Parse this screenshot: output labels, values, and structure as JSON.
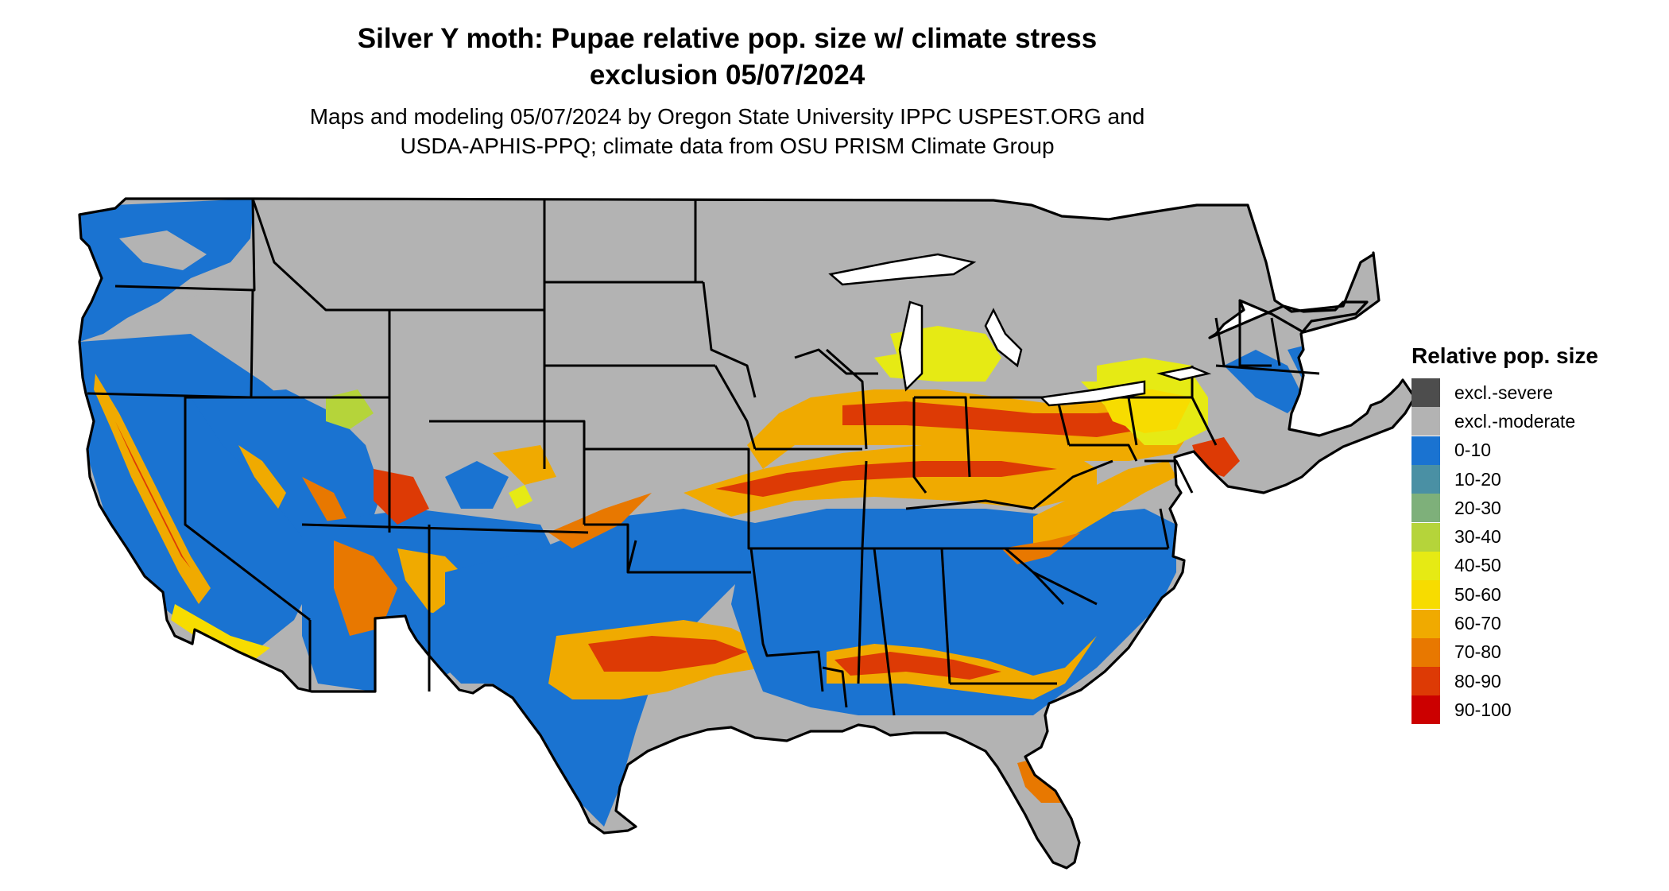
{
  "title": {
    "line1": "Silver Y moth: Pupae relative pop. size w/ climate stress",
    "line2": "exclusion 05/07/2024"
  },
  "subtitle": {
    "line1": "Maps and modeling 05/07/2024 by Oregon State University IPPC USPEST.ORG and",
    "line2": "USDA-APHIS-PPQ; climate data from OSU PRISM Climate Group"
  },
  "legend": {
    "title": "Relative pop. size",
    "items": [
      {
        "label": "excl.-severe",
        "color": "#4d4d4d"
      },
      {
        "label": "excl.-moderate",
        "color": "#b3b3b3"
      },
      {
        "label": "0-10",
        "color": "#1a73d1"
      },
      {
        "label": "10-20",
        "color": "#4a90a4"
      },
      {
        "label": "20-30",
        "color": "#7eb07a"
      },
      {
        "label": "30-40",
        "color": "#b5d43a"
      },
      {
        "label": "40-50",
        "color": "#e6ea14"
      },
      {
        "label": "50-60",
        "color": "#f7dc00"
      },
      {
        "label": "60-70",
        "color": "#f0aa00"
      },
      {
        "label": "70-80",
        "color": "#e87800"
      },
      {
        "label": "80-90",
        "color": "#dd3a05"
      },
      {
        "label": "90-100",
        "color": "#cc0000"
      }
    ]
  },
  "map": {
    "region": "Contiguous United States",
    "colors": {
      "moderate": "#b3b3b3",
      "low": "#1a73d1",
      "mid": "#f7dc00",
      "high": "#e87800",
      "veryhigh": "#dd3a05",
      "border": "#000000"
    }
  }
}
